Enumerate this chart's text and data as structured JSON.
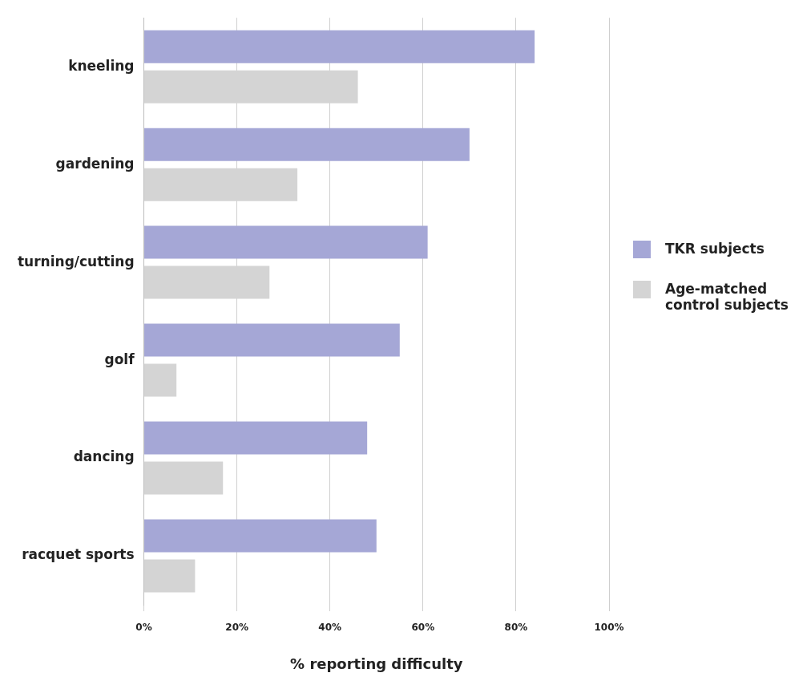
{
  "chart_data": {
    "type": "bar",
    "orientation": "horizontal",
    "xlabel": "% reporting difficulty",
    "categories": [
      "kneeling",
      "gardening",
      "turning/cutting",
      "golf",
      "dancing",
      "racquet sports"
    ],
    "series": [
      {
        "name": "TKR subjects",
        "color": "#a5a7d6",
        "values": [
          84,
          70,
          61,
          55,
          48,
          50
        ]
      },
      {
        "name": "Age-matched control subjects",
        "color": "#d4d4d4",
        "values": [
          46,
          33,
          27,
          7,
          17,
          11
        ]
      }
    ],
    "xlim": [
      0,
      100
    ],
    "xticks": [
      {
        "value": 0,
        "label": "0%"
      },
      {
        "value": 20,
        "label": "20%"
      },
      {
        "value": 40,
        "label": "40%"
      },
      {
        "value": 60,
        "label": "60%"
      },
      {
        "value": 80,
        "label": "80%"
      },
      {
        "value": 100,
        "label": "100%"
      }
    ],
    "grid": "x",
    "legend": "right"
  }
}
